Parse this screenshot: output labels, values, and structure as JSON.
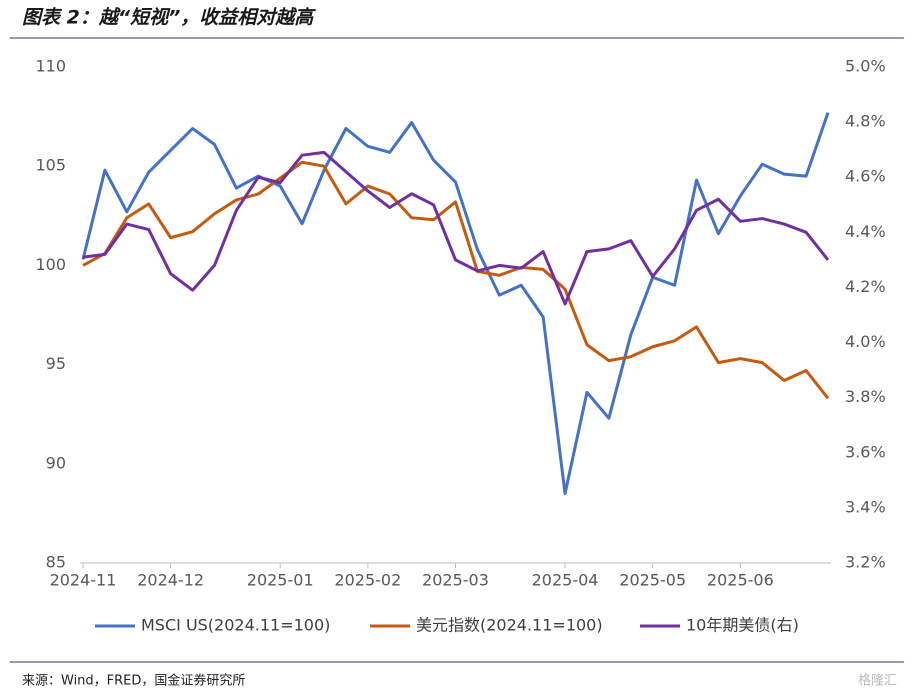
{
  "chart_data": {
    "type": "line",
    "title": "图表 2：越“短视”，收益相对越高",
    "source": "来源：Wind，FRED，国金证券研究所",
    "watermark": "格隆汇",
    "categories": [
      "2024-11",
      null,
      null,
      null,
      "2024-12",
      null,
      null,
      null,
      null,
      "2025-01",
      null,
      null,
      null,
      "2025-02",
      null,
      null,
      null,
      "2025-03",
      null,
      null,
      null,
      null,
      "2025-04",
      null,
      null,
      null,
      "2025-05",
      null,
      null,
      null,
      "2025-06",
      null,
      null,
      null,
      null
    ],
    "series": [
      {
        "name": "MSCI US(2024.11=100)",
        "color": "#4472c4",
        "values": [
          100.3,
          104.8,
          102.7,
          104.7,
          105.8,
          106.9,
          106.1,
          103.9,
          104.5,
          104.0,
          102.1,
          104.8,
          106.9,
          106.0,
          105.7,
          107.2,
          105.3,
          104.2,
          100.8,
          98.5,
          99.0,
          97.4,
          88.5,
          93.6,
          92.3,
          96.5,
          99.4,
          99.0,
          104.3,
          101.6,
          103.5,
          105.1,
          104.6,
          104.5,
          107.7
        ]
      },
      {
        "name": "美元指数(2024.11=100)",
        "color": "#c55a11",
        "values": [
          100.0,
          100.6,
          102.4,
          103.1,
          101.4,
          101.7,
          102.6,
          103.3,
          103.6,
          104.4,
          105.2,
          105.0,
          103.1,
          104.0,
          103.6,
          102.4,
          102.3,
          103.2,
          99.7,
          99.5,
          99.9,
          99.8,
          98.8,
          96.0,
          95.2,
          95.4,
          95.9,
          96.2,
          96.9,
          95.1,
          95.3,
          95.1,
          94.2,
          94.7,
          93.3
        ]
      },
      {
        "name": "10年期美债(右)",
        "color": "#7030a0",
        "axis": "y2",
        "values": [
          4.31,
          4.32,
          4.43,
          4.41,
          4.25,
          4.19,
          4.28,
          4.48,
          4.6,
          4.58,
          4.68,
          4.69,
          4.62,
          4.55,
          4.49,
          4.54,
          4.5,
          4.3,
          4.26,
          4.28,
          4.27,
          4.33,
          4.14,
          4.33,
          4.34,
          4.37,
          4.24,
          4.34,
          4.48,
          4.52,
          4.44,
          4.45,
          4.43,
          4.4,
          4.3
        ]
      }
    ],
    "ylim": [
      85,
      110
    ],
    "yticks": [
      85,
      90,
      95,
      100,
      105,
      110
    ],
    "y2lim": [
      3.2,
      5.0
    ],
    "y2ticks": [
      {
        "value": 3.2,
        "label": "3.2%"
      },
      {
        "value": 3.4,
        "label": "3.4%"
      },
      {
        "value": 3.6,
        "label": "3.6%"
      },
      {
        "value": 3.8,
        "label": "3.8%"
      },
      {
        "value": 4.0,
        "label": "4.0%"
      },
      {
        "value": 4.2,
        "label": "4.2%"
      },
      {
        "value": 4.4,
        "label": "4.4%"
      },
      {
        "value": 4.6,
        "label": "4.6%"
      },
      {
        "value": 4.8,
        "label": "4.8%"
      },
      {
        "value": 5.0,
        "label": "5.0%"
      }
    ],
    "grid": false,
    "legend": "bottom"
  }
}
